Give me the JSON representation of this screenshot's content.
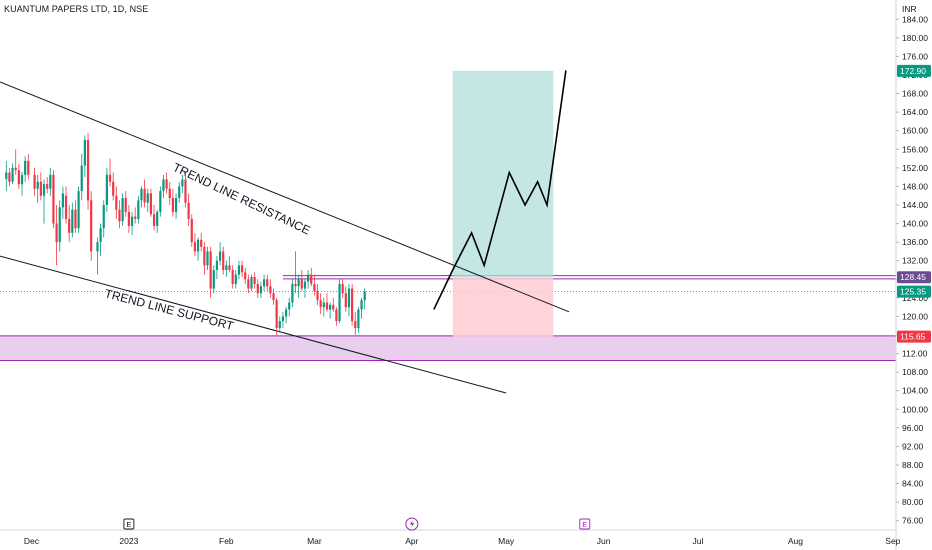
{
  "header": {
    "title": "KUANTUM PAPERS LTD, 1D, NSE",
    "currency": "INR"
  },
  "colors": {
    "up": "#089981",
    "down": "#f23645",
    "zone": "#e1bee7",
    "zone_line": "#9c27b0",
    "target_fill": "#b2dfdb",
    "stop_fill": "#ffcdd2",
    "current_badge": "#089981",
    "stop_badge": "#f23645",
    "resistance_badge": "#6a4c93"
  },
  "chart_data": {
    "type": "candlestick",
    "y_ticks": [
      76,
      80,
      84,
      88,
      92,
      96,
      100,
      104,
      108,
      112,
      116,
      120,
      124,
      128,
      132,
      136,
      140,
      144,
      148,
      152,
      156,
      160,
      164,
      168,
      172,
      176,
      180,
      184
    ],
    "y_tick_labels": [
      "76.00",
      "80.00",
      "84.00",
      "88.00",
      "92.00",
      "96.00",
      "100.00",
      "104.00",
      "108.00",
      "112.00",
      "116.00",
      "120.00",
      "124.00",
      "128.00",
      "132.00",
      "136.00",
      "140.00",
      "144.00",
      "148.00",
      "152.00",
      "156.00",
      "160.00",
      "164.00",
      "168.00",
      "172.00",
      "176.00",
      "180.00",
      "184.00"
    ],
    "ylim": [
      74,
      186
    ],
    "x_ticks": [
      {
        "label": "Dec",
        "day": 0
      },
      {
        "label": "2023",
        "day": 31
      },
      {
        "label": "Feb",
        "day": 62
      },
      {
        "label": "Mar",
        "day": 90
      },
      {
        "label": "Apr",
        "day": 121
      },
      {
        "label": "May",
        "day": 151
      },
      {
        "label": "Jun",
        "day": 182
      },
      {
        "label": "Jul",
        "day": 212
      },
      {
        "label": "Aug",
        "day": 243
      },
      {
        "label": "Sep",
        "day": 274
      }
    ],
    "xlim": [
      -10,
      275
    ],
    "price_labels": [
      {
        "value": 172.9,
        "text": "172.90",
        "kind": "target"
      },
      {
        "value": 128.45,
        "text": "128.45",
        "kind": "resistance"
      },
      {
        "value": 125.35,
        "text": "125.35",
        "kind": "current"
      },
      {
        "value": 115.65,
        "text": "115.65",
        "kind": "stop"
      }
    ],
    "support_zone": [
      110.5,
      115.8
    ],
    "resistance_lines": [
      128.1,
      128.8
    ],
    "trend_lines": [
      {
        "label": "TREND LINE RESISTANCE",
        "from": [
          -10,
          170.5
        ],
        "to": [
          171,
          121.0
        ]
      },
      {
        "label": "TREND LINE SUPPORT",
        "from": [
          -10,
          133.0
        ],
        "to": [
          151,
          103.5
        ]
      }
    ],
    "trade_box": {
      "x_start": 134,
      "x_end": 166,
      "entry": 128.45,
      "target": 172.9,
      "stop": 115.65
    },
    "projection": [
      [
        128,
        121.5
      ],
      [
        134,
        130
      ],
      [
        140,
        138
      ],
      [
        144,
        131
      ],
      [
        152,
        151
      ],
      [
        157,
        144
      ],
      [
        161,
        149
      ],
      [
        164,
        144
      ],
      [
        170,
        173
      ]
    ],
    "events": [
      {
        "day": 31,
        "type": "E"
      },
      {
        "day": 121,
        "type": "D"
      },
      {
        "day": 176,
        "type": "E"
      }
    ],
    "candles": [
      [
        -8,
        149.6,
        153.5,
        147.0,
        151.0
      ],
      [
        -7,
        151.0,
        152.0,
        148.0,
        149.0
      ],
      [
        -6,
        149.0,
        153.0,
        148.5,
        152.0
      ],
      [
        -5,
        152.0,
        156.0,
        150.5,
        151.5
      ],
      [
        -4,
        151.5,
        152.8,
        147.5,
        148.5
      ],
      [
        -3,
        148.5,
        151.2,
        146.0,
        150.5
      ],
      [
        -2,
        150.5,
        154.5,
        149.0,
        153.5
      ],
      [
        -1,
        153.5,
        155.0,
        149.5,
        150.5
      ],
      [
        1,
        150.5,
        152.0,
        146.0,
        147.5
      ],
      [
        2,
        147.5,
        150.5,
        144.5,
        149.0
      ],
      [
        3,
        149.0,
        151.0,
        145.0,
        146.0
      ],
      [
        4,
        146.0,
        149.5,
        140.0,
        148.5
      ],
      [
        5,
        148.5,
        150.0,
        146.5,
        147.5
      ],
      [
        6,
        147.5,
        152.0,
        146.0,
        150.5
      ],
      [
        7,
        150.5,
        151.5,
        139.0,
        140.0
      ],
      [
        8,
        140.0,
        144.0,
        131.0,
        136.0
      ],
      [
        9,
        136.0,
        145.0,
        134.0,
        143.5
      ],
      [
        10,
        143.5,
        148.0,
        141.0,
        146.5
      ],
      [
        11,
        146.0,
        148.0,
        140.0,
        141.0
      ],
      [
        12,
        141.0,
        144.0,
        136.0,
        138.0
      ],
      [
        13,
        138.0,
        144.5,
        137.0,
        143.0
      ],
      [
        14,
        143.0,
        145.0,
        138.0,
        139.0
      ],
      [
        15,
        139.0,
        148.0,
        138.0,
        147.0
      ],
      [
        16,
        147.0,
        155.0,
        145.0,
        152.5
      ],
      [
        17,
        152.5,
        159.0,
        150.0,
        158.0
      ],
      [
        18,
        158.0,
        159.5,
        143.0,
        145.0
      ],
      [
        19,
        145.0,
        147.0,
        132.0,
        134.0
      ],
      [
        21,
        134.0,
        137.0,
        129.0,
        136.0
      ],
      [
        22,
        136.0,
        140.0,
        133.0,
        139.0
      ],
      [
        23,
        139.0,
        145.0,
        137.0,
        144.0
      ],
      [
        24,
        144.0,
        152.0,
        142.5,
        150.5
      ],
      [
        25,
        150.5,
        154.0,
        148.0,
        149.0
      ],
      [
        26,
        149.0,
        151.0,
        145.0,
        146.0
      ],
      [
        27,
        146.0,
        148.0,
        141.0,
        143.0
      ],
      [
        28,
        143.0,
        145.0,
        139.0,
        140.5
      ],
      [
        29,
        140.5,
        146.5,
        139.5,
        145.5
      ],
      [
        30,
        145.5,
        147.0,
        141.5,
        142.5
      ],
      [
        31,
        142.5,
        144.0,
        138.0,
        139.5
      ],
      [
        32,
        139.5,
        142.5,
        137.5,
        141.5
      ],
      [
        33,
        141.5,
        143.5,
        140.0,
        141.0
      ],
      [
        34,
        141.0,
        146.0,
        140.0,
        145.0
      ],
      [
        35,
        145.0,
        148.0,
        143.5,
        147.5
      ],
      [
        36,
        147.5,
        149.5,
        143.5,
        144.5
      ],
      [
        37,
        144.5,
        147.5,
        142.5,
        146.5
      ],
      [
        38,
        146.5,
        147.5,
        141.5,
        142.0
      ],
      [
        39,
        142.0,
        144.0,
        138.5,
        139.5
      ],
      [
        40,
        139.5,
        143.0,
        138.0,
        142.5
      ],
      [
        41,
        142.5,
        148.0,
        141.5,
        147.0
      ],
      [
        42,
        147.0,
        150.5,
        145.5,
        149.5
      ],
      [
        43,
        149.5,
        151.0,
        146.5,
        147.5
      ],
      [
        44,
        147.5,
        149.0,
        144.0,
        145.5
      ],
      [
        45,
        145.5,
        147.5,
        141.5,
        142.5
      ],
      [
        46,
        142.5,
        146.5,
        141.0,
        145.5
      ],
      [
        47,
        145.5,
        149.0,
        144.5,
        148.0
      ],
      [
        48,
        148.0,
        150.5,
        146.5,
        149.5
      ],
      [
        49,
        149.5,
        151.0,
        143.5,
        144.5
      ],
      [
        50,
        144.5,
        146.5,
        139.5,
        141.0
      ],
      [
        51,
        141.0,
        142.0,
        135.0,
        136.0
      ],
      [
        52,
        136.0,
        138.0,
        133.0,
        134.0
      ],
      [
        53,
        134.0,
        137.0,
        132.0,
        136.5
      ],
      [
        54,
        136.5,
        138.0,
        134.0,
        135.0
      ],
      [
        55,
        135.0,
        136.0,
        129.0,
        131.0
      ],
      [
        56,
        131.0,
        135.0,
        130.0,
        134.0
      ],
      [
        57,
        134.0,
        135.0,
        124.0,
        126.0
      ],
      [
        58,
        126.0,
        131.0,
        125.0,
        130.0
      ],
      [
        59,
        130.0,
        133.0,
        128.0,
        132.0
      ],
      [
        60,
        132.0,
        136.0,
        131.0,
        134.0
      ],
      [
        61,
        134.0,
        135.0,
        129.0,
        130.0
      ],
      [
        62,
        130.0,
        132.0,
        128.5,
        131.0
      ],
      [
        63,
        131.0,
        133.0,
        129.5,
        130.0
      ],
      [
        64,
        130.0,
        131.0,
        126.0,
        127.0
      ],
      [
        65,
        127.0,
        130.0,
        126.0,
        129.0
      ],
      [
        66,
        129.0,
        132.0,
        128.0,
        131.0
      ],
      [
        67,
        131.0,
        132.0,
        128.5,
        129.5
      ],
      [
        68,
        129.5,
        130.5,
        127.0,
        128.0
      ],
      [
        69,
        128.0,
        129.0,
        125.0,
        126.0
      ],
      [
        70,
        126.0,
        129.0,
        125.5,
        128.5
      ],
      [
        71,
        128.5,
        129.5,
        126.0,
        127.0
      ],
      [
        72,
        127.0,
        128.0,
        124.0,
        125.0
      ],
      [
        73,
        125.0,
        127.5,
        124.0,
        126.5
      ],
      [
        74,
        126.5,
        129.0,
        125.5,
        128.0
      ],
      [
        75,
        128.0,
        129.0,
        125.5,
        126.5
      ],
      [
        76,
        126.5,
        128.0,
        124.0,
        125.0
      ],
      [
        77,
        125.0,
        126.0,
        122.5,
        123.5
      ],
      [
        78,
        123.5,
        124.0,
        116.0,
        117.5
      ],
      [
        79,
        117.5,
        120.0,
        116.5,
        119.0
      ],
      [
        80,
        119.0,
        121.0,
        117.5,
        120.0
      ],
      [
        81,
        120.0,
        122.0,
        118.5,
        121.5
      ],
      [
        82,
        121.5,
        124.0,
        120.0,
        123.0
      ],
      [
        83,
        123.0,
        128.0,
        122.0,
        127.0
      ],
      [
        84,
        127.0,
        134.0,
        125.0,
        126.5
      ],
      [
        85,
        126.5,
        129.0,
        124.0,
        128.0
      ],
      [
        86,
        128.0,
        130.0,
        125.5,
        126.0
      ],
      [
        87,
        126.0,
        128.0,
        124.0,
        127.5
      ],
      [
        88,
        127.5,
        130.0,
        126.0,
        129.0
      ],
      [
        89,
        129.0,
        130.5,
        126.5,
        127.0
      ],
      [
        90,
        127.0,
        129.0,
        124.5,
        125.5
      ],
      [
        91,
        125.5,
        127.0,
        122.5,
        123.5
      ],
      [
        92,
        123.5,
        125.0,
        120.5,
        122.0
      ],
      [
        93,
        122.0,
        124.0,
        120.0,
        123.0
      ],
      [
        94,
        123.0,
        125.0,
        121.0,
        121.5
      ],
      [
        95,
        121.5,
        123.0,
        119.5,
        122.5
      ],
      [
        96,
        122.5,
        124.0,
        121.0,
        121.5
      ],
      [
        97,
        121.5,
        122.0,
        118.0,
        119.0
      ],
      [
        98,
        119.0,
        128.0,
        118.5,
        127.0
      ],
      [
        99,
        127.0,
        128.0,
        124.0,
        125.0
      ],
      [
        100,
        125.0,
        126.5,
        121.0,
        122.0
      ],
      [
        101,
        122.0,
        127.0,
        120.0,
        126.0
      ],
      [
        102,
        126.0,
        127.0,
        118.0,
        119.0
      ],
      [
        103,
        119.0,
        121.0,
        116.0,
        117.5
      ],
      [
        104,
        117.5,
        122.0,
        116.5,
        121.5
      ],
      [
        105,
        121.5,
        124.0,
        119.5,
        123.5
      ],
      [
        106,
        123.5,
        126.0,
        121.5,
        125.35
      ]
    ]
  }
}
